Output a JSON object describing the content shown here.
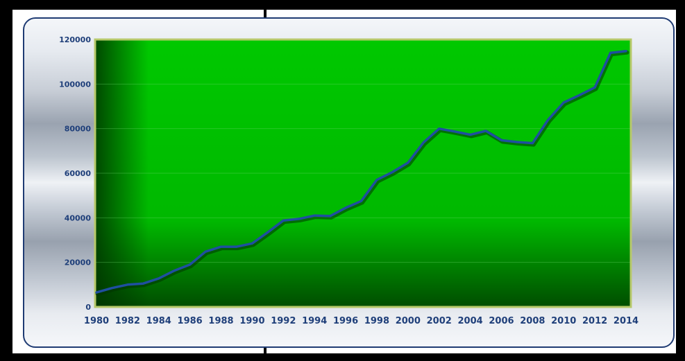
{
  "chart_data": {
    "type": "line",
    "title": "",
    "xlabel": "",
    "ylabel": "",
    "x": [
      1980,
      1981,
      1982,
      1983,
      1984,
      1985,
      1986,
      1987,
      1988,
      1989,
      1990,
      1991,
      1992,
      1993,
      1994,
      1995,
      1996,
      1997,
      1998,
      1999,
      2000,
      2001,
      2002,
      2003,
      2004,
      2005,
      2006,
      2007,
      2008,
      2009,
      2010,
      2011,
      2012,
      2013,
      2014
    ],
    "series": [
      {
        "values": [
          6500,
          8500,
          10000,
          10500,
          12800,
          16300,
          19000,
          24800,
          27000,
          27000,
          28500,
          33500,
          38800,
          39500,
          41000,
          40800,
          44500,
          47500,
          57000,
          60500,
          64700,
          73800,
          80000,
          78700,
          77300,
          79000,
          74800,
          74000,
          73500,
          84000,
          91700,
          95000,
          98500,
          114000,
          114800
        ]
      }
    ],
    "ylim": [
      0,
      120000
    ],
    "yticks": [
      "0",
      "20000",
      "40000",
      "60000",
      "80000",
      "100000",
      "120000"
    ],
    "xticks": [
      "1980",
      "1982",
      "1984",
      "1986",
      "1988",
      "1990",
      "1992",
      "1994",
      "1996",
      "1998",
      "2000",
      "2002",
      "2004",
      "2006",
      "2008",
      "2010",
      "2012",
      "2014"
    ],
    "grid": true,
    "legend": "none",
    "colors": {
      "plot_background": "#00c000",
      "line": "#1f4fa0",
      "line_shadow": "#003300",
      "tick_labels": "#1f3f7a",
      "panel_border": "#1f3b73",
      "plot_border": "#b7c96a"
    }
  }
}
